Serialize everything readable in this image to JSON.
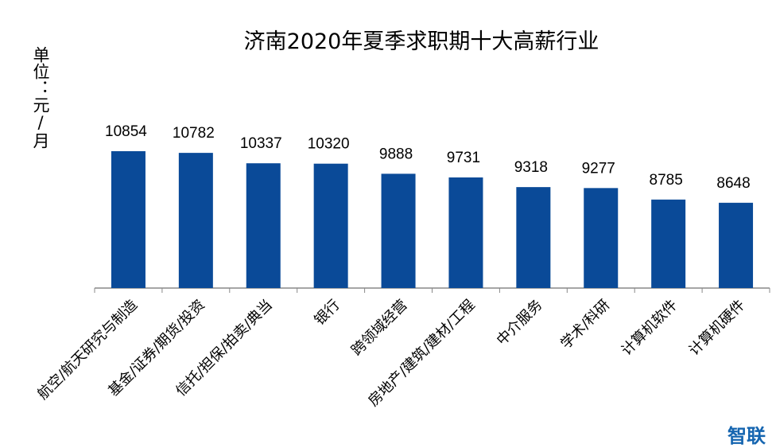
{
  "chart_data": {
    "type": "bar",
    "title": "济南2020年夏季求职期十大高薪行业",
    "ylabel": "单位：元/月",
    "categories": [
      "航空/航天研究与制造",
      "基金/证券/期货/投资",
      "信托/担保/拍卖/典当",
      "银行",
      "跨领域经营",
      "房地产/建筑/建材/工程",
      "中介服务",
      "学术/科研",
      "计算机软件",
      "计算机硬件"
    ],
    "values": [
      10854,
      10782,
      10337,
      10320,
      9888,
      9731,
      9318,
      9277,
      8785,
      8648
    ],
    "ylim": [
      5000,
      11500
    ],
    "grid": false,
    "bar_color": "#0a4a98",
    "data_labels": true
  },
  "logo": "智联"
}
